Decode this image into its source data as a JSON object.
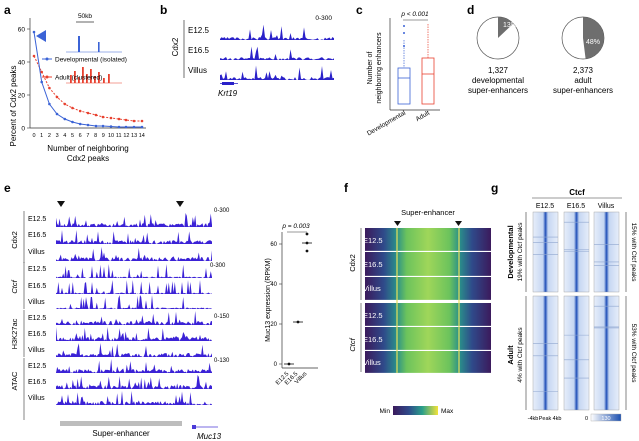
{
  "panel_letters": {
    "a": "a",
    "b": "b",
    "c": "c",
    "d": "d",
    "e": "e",
    "f": "f",
    "g": "g"
  },
  "panel_a": {
    "ylabel": "Percent of Cdx2 peaks",
    "xlabel_line1": "Number of neighboring",
    "xlabel_line2": "Cdx2 peaks",
    "yticks": [
      "0",
      "20",
      "40",
      "60"
    ],
    "xticks": [
      "0",
      "1",
      "2",
      "3",
      "4",
      "5",
      "6",
      "7",
      "8",
      "9",
      "10",
      "11",
      "12",
      "13",
      "14"
    ],
    "scale_label": "50kb",
    "legend": [
      "Developmental (isolated)",
      "Adult (clustered)"
    ],
    "colors": {
      "developmental": "#3b63d6",
      "adult": "#e8412f"
    }
  },
  "panel_b": {
    "group_label": "Cdx2",
    "rows": [
      "E12.5",
      "E16.5",
      "Villus"
    ],
    "range": "0-300",
    "gene": "Krt19",
    "track_color": "#2a21c9"
  },
  "panel_c": {
    "ylabel_line1": "Number of",
    "ylabel_line2": "neighboring enhancers",
    "pvalue": "p < 0.001",
    "xticks": [
      "Developmental",
      "Adult"
    ]
  },
  "panel_d": {
    "pies": [
      {
        "percent_label": "13%",
        "count": "1,327",
        "line1": "developmental",
        "line2": "super-enhancers",
        "fraction": 0.13
      },
      {
        "percent_label": "48%",
        "count": "2,373",
        "line1": "adult",
        "line2": "super-enhancers",
        "fraction": 0.48
      }
    ],
    "wedge_color": "#6e6e6e"
  },
  "panel_e": {
    "groups": [
      {
        "label": "Cdx2",
        "range": "0-300",
        "rows": [
          "E12.5",
          "E16.5",
          "Villus"
        ]
      },
      {
        "label": "Ctcf",
        "range": "0-300",
        "rows": [
          "E12.5",
          "E16.5",
          "Villus"
        ]
      },
      {
        "label": "H3K27ac",
        "range": "0-150",
        "rows": [
          "E12.5",
          "E16.5",
          "Villus"
        ]
      },
      {
        "label": "ATAC",
        "range": "0-130",
        "rows": [
          "E12.5",
          "E16.5",
          "Villus"
        ]
      }
    ],
    "super_enhancer_label": "Super-enhancer",
    "gene": "Muc13",
    "scatter": {
      "ylabel": "Muc13 expression (RPKM)",
      "yticks": [
        "0",
        "20",
        "40",
        "60"
      ],
      "pvalue": "p = 0.003",
      "xticks": [
        "E12.5",
        "E16.5",
        "Villus"
      ]
    }
  },
  "panel_f": {
    "title": "Super-enhancer",
    "groups": [
      {
        "label": "Cdx2",
        "rows": [
          "E12.5",
          "E16.5",
          "Villus"
        ]
      },
      {
        "label": "Ctcf",
        "rows": [
          "E12.5",
          "E16.5",
          "Villus"
        ]
      }
    ],
    "colorbar_min": "Min",
    "colorbar_max": "Max"
  },
  "panel_g": {
    "title": "Ctcf",
    "columns": [
      "E12.5",
      "E16.5",
      "Villus"
    ],
    "left_groups": [
      {
        "label": "Developmental",
        "sub": "19% with Ctcf peaks"
      },
      {
        "label": "Adult",
        "sub": "4% with Ctcf peaks"
      }
    ],
    "right_labels": [
      "15% with Ctcf peaks",
      "53% with Ctcf peaks"
    ],
    "xaxis": [
      "-4kb",
      "Peak",
      "4kb"
    ],
    "colorbar": [
      "0",
      "130"
    ]
  }
}
